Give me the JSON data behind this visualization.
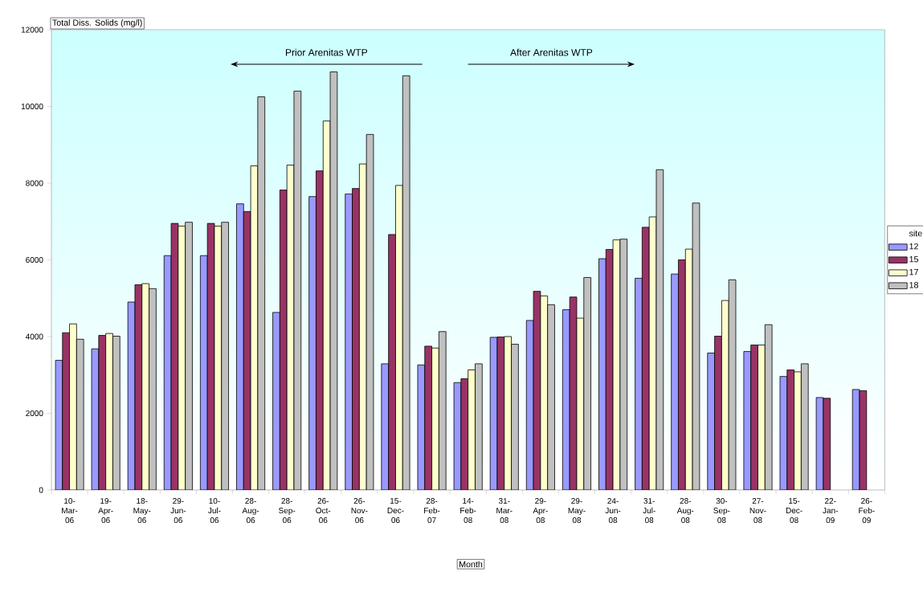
{
  "chart_data": {
    "type": "bar",
    "xlabel": "Month",
    "ylabel": "Total Diss. Solids (mg/l)",
    "legend_title": "site",
    "legend": "right",
    "categories": [
      "10-Mar-06",
      "19-Apr-06",
      "18-May-06",
      "29-Jun-06",
      "10-Jul-06",
      "28-Aug-06",
      "28-Sep-06",
      "26-Oct-06",
      "26-Nov-06",
      "15-Dec-06",
      "28-Feb-07",
      "14-Feb-08",
      "31-Mar-08",
      "29-Apr-08",
      "29-May-08",
      "24-Jun-08",
      "31-Jul-08",
      "28-Aug-08",
      "30-Sep-08",
      "27-Nov-08",
      "15-Dec-08",
      "22-Jan-09",
      "26-Feb-09"
    ],
    "series": [
      {
        "name": "12",
        "color": "#9999ff",
        "values": [
          3380,
          3680,
          4900,
          6110,
          6110,
          7460,
          4630,
          7650,
          7720,
          3290,
          3260,
          2800,
          3980,
          4420,
          4700,
          6030,
          5520,
          5630,
          3570,
          3610,
          2960,
          2410,
          2620
        ]
      },
      {
        "name": "15",
        "color": "#993366",
        "values": [
          4100,
          4030,
          5350,
          6950,
          6950,
          7260,
          7820,
          8320,
          7860,
          6660,
          3750,
          2900,
          3990,
          5180,
          5030,
          6270,
          6850,
          6000,
          4010,
          3780,
          3130,
          2390,
          2590
        ]
      },
      {
        "name": "17",
        "color": "#ffffcc",
        "values": [
          4330,
          4080,
          5380,
          6880,
          6880,
          8450,
          8470,
          9620,
          8500,
          7940,
          3700,
          3130,
          4000,
          5060,
          4480,
          6520,
          7120,
          6280,
          4940,
          3780,
          3080,
          null,
          null
        ]
      },
      {
        "name": "18",
        "color": "#c0c0c0",
        "values": [
          3930,
          4010,
          5250,
          6980,
          6980,
          10250,
          10400,
          10900,
          9270,
          10800,
          4130,
          3290,
          3800,
          4830,
          5540,
          6540,
          8350,
          7480,
          5480,
          4310,
          3290,
          null,
          null
        ]
      }
    ],
    "ylim": [
      0,
      12000
    ],
    "yticks": [
      0,
      2000,
      4000,
      6000,
      8000,
      10000,
      12000
    ],
    "grid": false,
    "annotations": [
      "Prior Arenitas WTP",
      "After Arenitas WTP"
    ]
  }
}
